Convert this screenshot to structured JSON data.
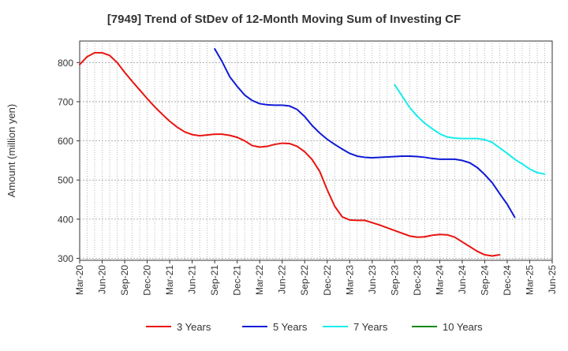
{
  "chart_data": {
    "type": "line",
    "title": "[7949]  Trend of StDev of 12-Month Moving Sum of Investing CF",
    "ylabel": "Amount (million yen)",
    "xlabel": "",
    "ylim": [
      295,
      855
    ],
    "yticks": [
      300,
      400,
      500,
      600,
      700,
      800
    ],
    "xticks": [
      "Mar-20",
      "Jun-20",
      "Sep-20",
      "Dec-20",
      "Mar-21",
      "Jun-21",
      "Sep-21",
      "Dec-21",
      "Mar-22",
      "Jun-22",
      "Sep-22",
      "Dec-22",
      "Mar-23",
      "Jun-23",
      "Sep-23",
      "Dec-23",
      "Mar-24",
      "Jun-24",
      "Sep-24",
      "Dec-24",
      "Mar-25",
      "Jun-25"
    ],
    "grid": true,
    "legend_position": "bottom",
    "series": [
      {
        "name": "3 Years",
        "color": "#e8140f",
        "start_index": 0,
        "values": [
          795,
          815,
          825,
          825,
          818,
          800,
          775,
          752,
          730,
          708,
          687,
          668,
          650,
          635,
          623,
          616,
          613,
          615,
          617,
          617,
          614,
          609,
          600,
          588,
          584,
          586,
          591,
          594,
          593,
          586,
          572,
          552,
          522,
          475,
          433,
          406,
          398,
          397,
          397,
          391,
          385,
          378,
          371,
          364,
          357,
          354,
          355,
          359,
          361,
          360,
          354,
          342,
          330,
          318,
          309,
          306,
          309
        ]
      },
      {
        "name": "5 Years",
        "color": "#0f1ad6",
        "start_index": 18,
        "values": [
          835,
          802,
          764,
          739,
          717,
          703,
          695,
          692,
          691,
          691,
          689,
          680,
          662,
          639,
          620,
          604,
          591,
          579,
          568,
          561,
          558,
          557,
          558,
          559,
          560,
          561,
          561,
          560,
          558,
          555,
          553,
          553,
          553,
          550,
          544,
          532,
          514,
          493,
          465,
          438,
          405
        ]
      },
      {
        "name": "7 Years",
        "color": "#16ecec",
        "start_index": 42,
        "values": [
          743,
          714,
          685,
          663,
          645,
          631,
          618,
          610,
          607,
          606,
          606,
          606,
          603,
          596,
          582,
          568,
          553,
          541,
          528,
          519,
          515
        ]
      },
      {
        "name": "10 Years",
        "color": "#138a13",
        "start_index": 0,
        "values": []
      }
    ]
  }
}
